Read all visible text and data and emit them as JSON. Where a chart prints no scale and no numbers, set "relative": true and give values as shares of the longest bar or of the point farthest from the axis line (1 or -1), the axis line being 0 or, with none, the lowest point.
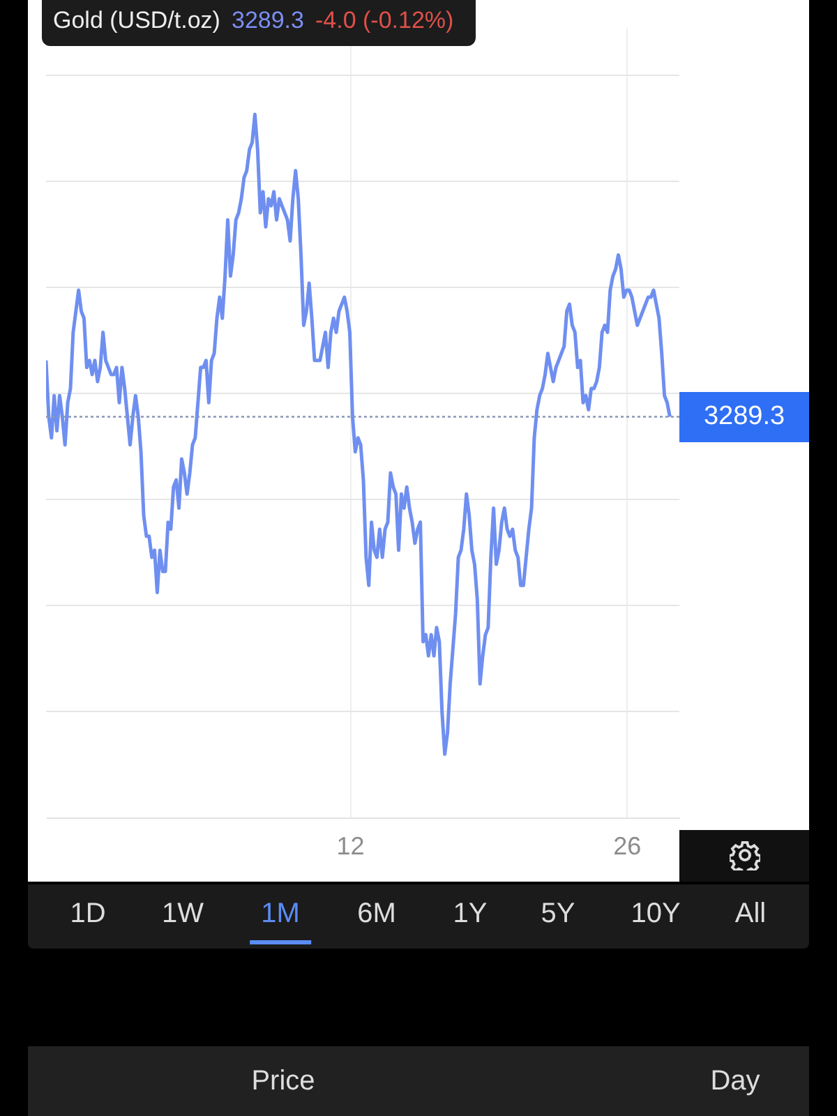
{
  "chart_data": {
    "type": "line",
    "title": "Gold (USD/t.oz)",
    "relative": true,
    "grid": true,
    "categories": [
      null,
      null,
      null,
      null,
      null,
      null,
      null,
      null,
      null,
      null,
      null,
      null,
      null,
      null,
      null,
      null,
      null,
      null,
      null,
      null,
      null,
      null,
      null,
      null,
      null,
      null,
      null,
      null,
      null,
      null,
      null,
      null,
      null,
      null,
      null,
      null,
      null,
      null,
      null,
      null,
      null,
      null,
      null,
      null,
      null,
      null,
      null,
      null,
      null,
      null,
      null,
      null,
      null,
      null,
      null,
      null,
      null,
      null,
      null,
      null,
      null,
      null,
      null,
      null,
      null,
      null,
      null,
      null,
      null,
      null,
      null,
      null,
      null,
      null,
      null,
      null,
      null,
      null,
      null,
      null,
      null,
      null,
      null,
      null,
      null,
      null,
      null,
      null,
      null,
      null,
      null,
      null,
      null,
      null,
      null,
      null,
      null,
      null,
      null,
      null,
      null,
      null,
      null,
      null,
      null,
      null,
      null,
      null,
      null,
      null,
      null,
      null,
      "12",
      null,
      null,
      null,
      null,
      null,
      null,
      null,
      null,
      null,
      null,
      null,
      null,
      null,
      null,
      null,
      null,
      null,
      null,
      null,
      null,
      null,
      null,
      null,
      null,
      null,
      null,
      null,
      null,
      null,
      null,
      null,
      null,
      null,
      null,
      null,
      null,
      null,
      null,
      null,
      null,
      null,
      null,
      null,
      null,
      null,
      null,
      null,
      null,
      null,
      null,
      null,
      null,
      null,
      null,
      null,
      null,
      null,
      null,
      null,
      null,
      null,
      null,
      null,
      null,
      null,
      null,
      null,
      null,
      null,
      null,
      null,
      null,
      null,
      null,
      null,
      null,
      null,
      null,
      null,
      null,
      null,
      null,
      null,
      null,
      null,
      null,
      null,
      null,
      null,
      null,
      null,
      null,
      null,
      null,
      null,
      null,
      null,
      null,
      null,
      null,
      null,
      "26",
      null,
      null,
      null,
      null,
      null,
      null,
      null,
      null,
      null,
      null,
      null,
      null,
      null,
      null,
      null,
      null
    ],
    "series": [
      {
        "color": "#6f8ff0",
        "values": [
          0.65,
          0.57,
          0.54,
          0.6,
          0.55,
          0.6,
          0.57,
          0.53,
          0.59,
          0.61,
          0.69,
          0.72,
          0.75,
          0.72,
          0.71,
          0.64,
          0.65,
          0.63,
          0.65,
          0.62,
          0.64,
          0.69,
          0.65,
          0.64,
          0.63,
          0.63,
          0.64,
          0.59,
          0.64,
          0.61,
          0.57,
          0.53,
          0.57,
          0.6,
          0.57,
          0.52,
          0.43,
          0.4,
          0.4,
          0.37,
          0.38,
          0.32,
          0.38,
          0.35,
          0.35,
          0.42,
          0.41,
          0.47,
          0.48,
          0.44,
          0.51,
          0.49,
          0.46,
          0.49,
          0.53,
          0.54,
          0.59,
          0.64,
          0.64,
          0.65,
          0.59,
          0.65,
          0.66,
          0.71,
          0.74,
          0.71,
          0.77,
          0.85,
          0.77,
          0.8,
          0.85,
          0.86,
          0.88,
          0.91,
          0.92,
          0.95,
          0.96,
          1,
          0.95,
          0.86,
          0.89,
          0.84,
          0.88,
          0.87,
          0.89,
          0.85,
          0.88,
          0.87,
          0.86,
          0.85,
          0.82,
          0.88,
          0.92,
          0.88,
          0.8,
          0.7,
          0.72,
          0.76,
          0.71,
          0.65,
          0.65,
          0.65,
          0.67,
          0.69,
          0.64,
          0.69,
          0.71,
          0.69,
          0.72,
          0.73,
          0.74,
          0.72,
          0.69,
          0.57,
          0.52,
          0.54,
          0.53,
          0.48,
          0.37,
          0.33,
          0.42,
          0.38,
          0.37,
          0.41,
          0.37,
          0.41,
          0.42,
          0.49,
          0.47,
          0.46,
          0.38,
          0.46,
          0.44,
          0.47,
          0.44,
          0.42,
          0.39,
          0.41,
          0.42,
          0.25,
          0.26,
          0.23,
          0.26,
          0.23,
          0.27,
          0.25,
          0.15,
          0.09,
          0.12,
          0.19,
          0.24,
          0.29,
          0.37,
          0.38,
          0.41,
          0.46,
          0.43,
          0.38,
          0.36,
          0.31,
          0.19,
          0.23,
          0.26,
          0.27,
          0.37,
          0.44,
          0.36,
          0.38,
          0.42,
          0.44,
          0.41,
          0.4,
          0.41,
          0.38,
          0.37,
          0.33,
          0.33,
          0.37,
          0.41,
          0.44,
          0.54,
          0.58,
          0.6,
          0.61,
          0.63,
          0.66,
          0.64,
          0.62,
          0.64,
          0.65,
          0.66,
          0.67,
          0.72,
          0.73,
          0.7,
          0.69,
          0.64,
          0.65,
          0.59,
          0.6,
          0.58,
          0.61,
          0.61,
          0.62,
          0.64,
          0.69,
          0.7,
          0.69,
          0.75,
          0.77,
          0.78,
          0.8,
          0.78,
          0.74,
          0.75,
          0.75,
          0.74,
          0.72,
          0.7,
          0.71,
          0.72,
          0.73,
          0.74,
          0.74,
          0.75,
          0.73,
          0.71,
          0.66,
          0.6,
          0.59,
          0.57
        ]
      }
    ],
    "ref_lines": [
      {
        "axis": "y",
        "value": 0.57,
        "color": "#8a97b8",
        "line_style": "dotted"
      }
    ],
    "annotations": [
      "3289.3",
      "-4.0 (-0.12%)",
      "1D",
      "1W",
      "1M",
      "6M",
      "1Y",
      "5Y",
      "10Y",
      "All",
      "Price",
      "Day",
      "3289.3"
    ]
  }
}
